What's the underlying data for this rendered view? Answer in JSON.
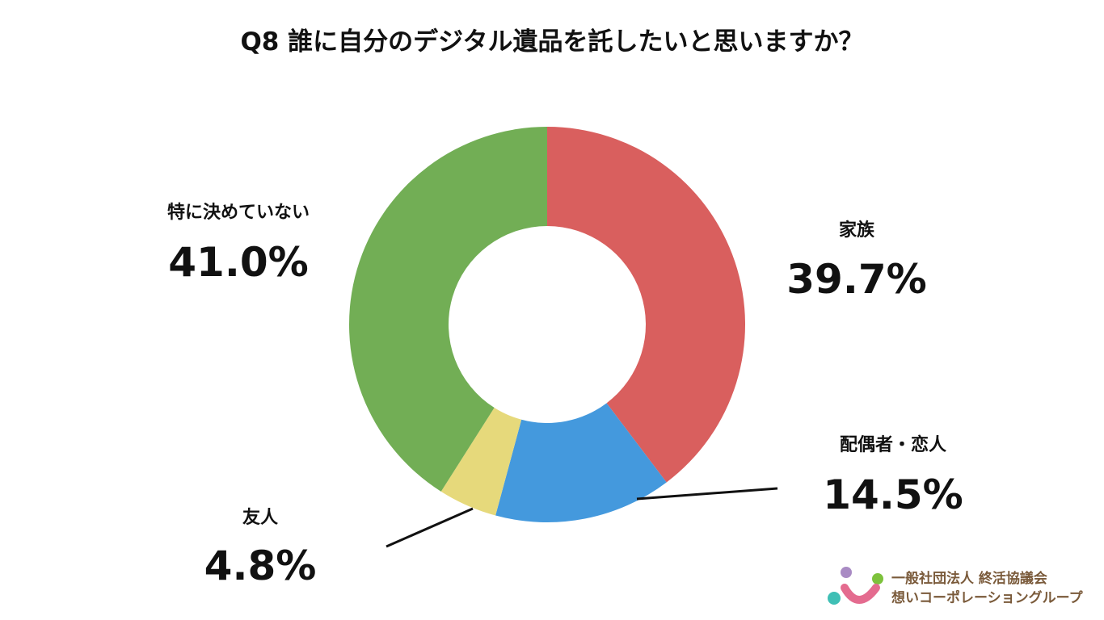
{
  "chart_data": {
    "type": "donut",
    "title": "Q8 誰に自分のデジタル遺品を託したいと思いますか？",
    "categories": [
      "家族",
      "配偶者・恋人",
      "友人",
      "特に決めていない"
    ],
    "values": [
      39.7,
      14.5,
      4.8,
      41.0
    ],
    "value_labels": [
      "39.7%",
      "14.5%",
      "4.8%",
      "41.0%"
    ],
    "colors": [
      "#d95f5e",
      "#4499dd",
      "#e6d97b",
      "#72ae55"
    ]
  },
  "footer": {
    "organization": "一般社団法人 終活協議会",
    "group": "想いコーポレーショングループ"
  }
}
